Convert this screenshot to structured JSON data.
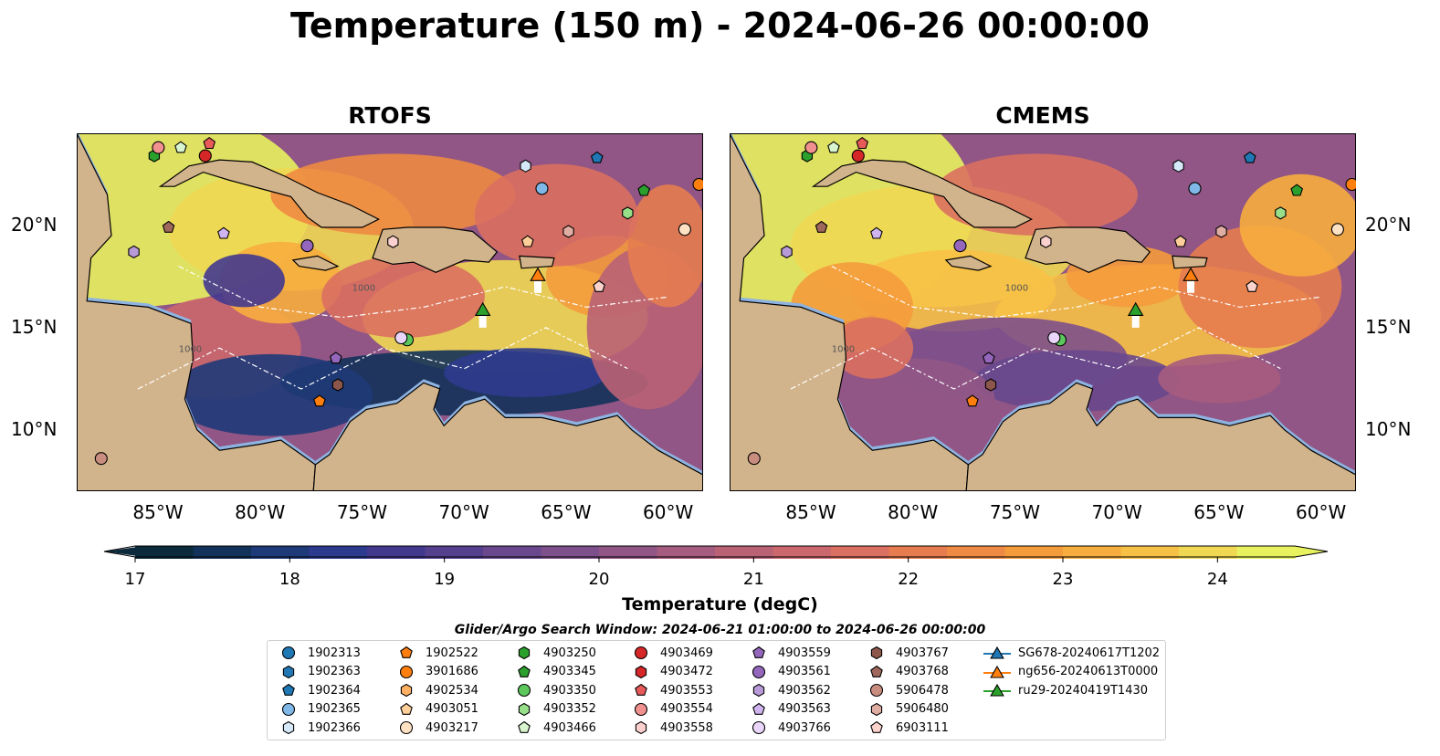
{
  "title": "Temperature (150 m) - 2024-06-26 00:00:00",
  "panels": [
    {
      "title": "RTOFS"
    },
    {
      "title": "CMEMS"
    }
  ],
  "lon_ticks": [
    "85°W",
    "80°W",
    "75°W",
    "70°W",
    "65°W",
    "60°W"
  ],
  "lat_ticks": [
    "20°N",
    "15°N",
    "10°N"
  ],
  "map_extent": {
    "lon": [
      -89,
      -58.3
    ],
    "lat": [
      7,
      24.5
    ]
  },
  "contour_labels": [
    "1000",
    "1000"
  ],
  "colorbar": {
    "title": "Temperature (degC)",
    "ticks": [
      "17",
      "18",
      "19",
      "20",
      "21",
      "22",
      "23",
      "24"
    ],
    "range": [
      17,
      24.5
    ],
    "step": 0.25,
    "extend": "both",
    "colors": [
      "#0c2a3c",
      "#13325a",
      "#1f3a78",
      "#2d3b8e",
      "#42398f",
      "#55408e",
      "#69488d",
      "#7d508b",
      "#915685",
      "#a65c7e",
      "#b96276",
      "#cb686d",
      "#da7061",
      "#e67c50",
      "#ee8a43",
      "#f49b3c",
      "#f7ad3e",
      "#f7c146",
      "#f0d853",
      "#e8f15e"
    ]
  },
  "search_window": "Glider/Argo Search Window: 2024-06-21 01:00:00 to 2024-06-26 00:00:00",
  "colors": {
    "land": "#d2b48c",
    "shelf": "#8fb3e0",
    "legend_border": "#cfcfcf"
  },
  "legend": [
    {
      "label": "1902313",
      "marker": "circle",
      "color": "#1f77b4"
    },
    {
      "label": "1902363",
      "marker": "hexagon",
      "color": "#1f77b4"
    },
    {
      "label": "1902364",
      "marker": "pentagon",
      "color": "#1f77b4"
    },
    {
      "label": "1902365",
      "marker": "circle",
      "color": "#7fb8e6"
    },
    {
      "label": "1902366",
      "marker": "hexagon",
      "color": "#d6e9f8"
    },
    {
      "label": "1902522",
      "marker": "pentagon",
      "color": "#ff7f0e"
    },
    {
      "label": "3901686",
      "marker": "circle",
      "color": "#ff7f0e"
    },
    {
      "label": "4902534",
      "marker": "hexagon",
      "color": "#ffb062"
    },
    {
      "label": "4903051",
      "marker": "pentagon",
      "color": "#ffcf99"
    },
    {
      "label": "4903217",
      "marker": "circle",
      "color": "#ffe2c4"
    },
    {
      "label": "4903250",
      "marker": "hexagon",
      "color": "#2ca02c"
    },
    {
      "label": "4903345",
      "marker": "pentagon",
      "color": "#2ca02c"
    },
    {
      "label": "4903350",
      "marker": "circle",
      "color": "#5cc85c"
    },
    {
      "label": "4903352",
      "marker": "hexagon",
      "color": "#98df8a"
    },
    {
      "label": "4903466",
      "marker": "pentagon",
      "color": "#d8f5d0"
    },
    {
      "label": "4903469",
      "marker": "circle",
      "color": "#d62728"
    },
    {
      "label": "4903472",
      "marker": "hexagon",
      "color": "#d62728"
    },
    {
      "label": "4903553",
      "marker": "pentagon",
      "color": "#e8595a"
    },
    {
      "label": "4903554",
      "marker": "circle",
      "color": "#f0908f"
    },
    {
      "label": "4903558",
      "marker": "hexagon",
      "color": "#fbd0ce"
    },
    {
      "label": "4903559",
      "marker": "pentagon",
      "color": "#9467bd"
    },
    {
      "label": "4903561",
      "marker": "circle",
      "color": "#9467bd"
    },
    {
      "label": "4903562",
      "marker": "hexagon",
      "color": "#b89ad8"
    },
    {
      "label": "4903563",
      "marker": "pentagon",
      "color": "#d0b4f0"
    },
    {
      "label": "4903766",
      "marker": "circle",
      "color": "#ead6fb"
    },
    {
      "label": "4903767",
      "marker": "hexagon",
      "color": "#8c564b"
    },
    {
      "label": "4903768",
      "marker": "pentagon",
      "color": "#a0685c"
    },
    {
      "label": "5906478",
      "marker": "circle",
      "color": "#c98d80"
    },
    {
      "label": "5906480",
      "marker": "hexagon",
      "color": "#e0ada3"
    },
    {
      "label": "6903111",
      "marker": "pentagon",
      "color": "#fbd2cc"
    },
    {
      "label": "SG678-20240617T1202",
      "marker": "triangle-line",
      "color": "#1f77b4"
    },
    {
      "label": "ng656-20240613T0000",
      "marker": "triangle-line",
      "color": "#ff7f0e"
    },
    {
      "label": "ru29-20240419T1430",
      "marker": "triangle-line",
      "color": "#2ca02c"
    }
  ],
  "floats": [
    {
      "id": "1902364",
      "lon": -63.5,
      "lat": 23.3
    },
    {
      "id": "1902365",
      "lon": -66.2,
      "lat": 21.8
    },
    {
      "id": "1902366",
      "lon": -67.0,
      "lat": 22.9
    },
    {
      "id": "1902522",
      "lon": -77.1,
      "lat": 11.4
    },
    {
      "id": "3901686",
      "lon": -58.5,
      "lat": 22.0
    },
    {
      "id": "4903051",
      "lon": -66.9,
      "lat": 19.2
    },
    {
      "id": "4903217",
      "lon": -59.2,
      "lat": 19.8
    },
    {
      "id": "4903250",
      "lon": -85.2,
      "lat": 23.4
    },
    {
      "id": "4903345",
      "lon": -61.2,
      "lat": 21.7
    },
    {
      "id": "4903350",
      "lon": -72.8,
      "lat": 14.4
    },
    {
      "id": "4903352",
      "lon": -62.0,
      "lat": 20.6
    },
    {
      "id": "4903466",
      "lon": -83.9,
      "lat": 23.8
    },
    {
      "id": "4903469",
      "lon": -82.7,
      "lat": 23.4
    },
    {
      "id": "4903553",
      "lon": -82.5,
      "lat": 24.0
    },
    {
      "id": "4903554",
      "lon": -85.0,
      "lat": 23.8
    },
    {
      "id": "4903558",
      "lon": -73.5,
      "lat": 19.2
    },
    {
      "id": "4903559",
      "lon": -76.3,
      "lat": 13.5
    },
    {
      "id": "4903561",
      "lon": -77.7,
      "lat": 19.0
    },
    {
      "id": "4903562",
      "lon": -86.2,
      "lat": 18.7
    },
    {
      "id": "4903563",
      "lon": -81.8,
      "lat": 19.6
    },
    {
      "id": "4903766",
      "lon": -73.1,
      "lat": 14.5
    },
    {
      "id": "4903767",
      "lon": -76.2,
      "lat": 12.2
    },
    {
      "id": "4903768",
      "lon": -84.5,
      "lat": 19.9
    },
    {
      "id": "5906478",
      "lon": -87.8,
      "lat": 8.6
    },
    {
      "id": "5906480",
      "lon": -64.9,
      "lat": 19.7
    },
    {
      "id": "6903111",
      "lon": -63.4,
      "lat": 17.0
    }
  ],
  "gliders": [
    {
      "id": "ng656-20240613T0000",
      "lon": -66.4,
      "lat": 17.5
    },
    {
      "id": "ru29-20240419T1430",
      "lon": -69.1,
      "lat": 15.8
    }
  ]
}
